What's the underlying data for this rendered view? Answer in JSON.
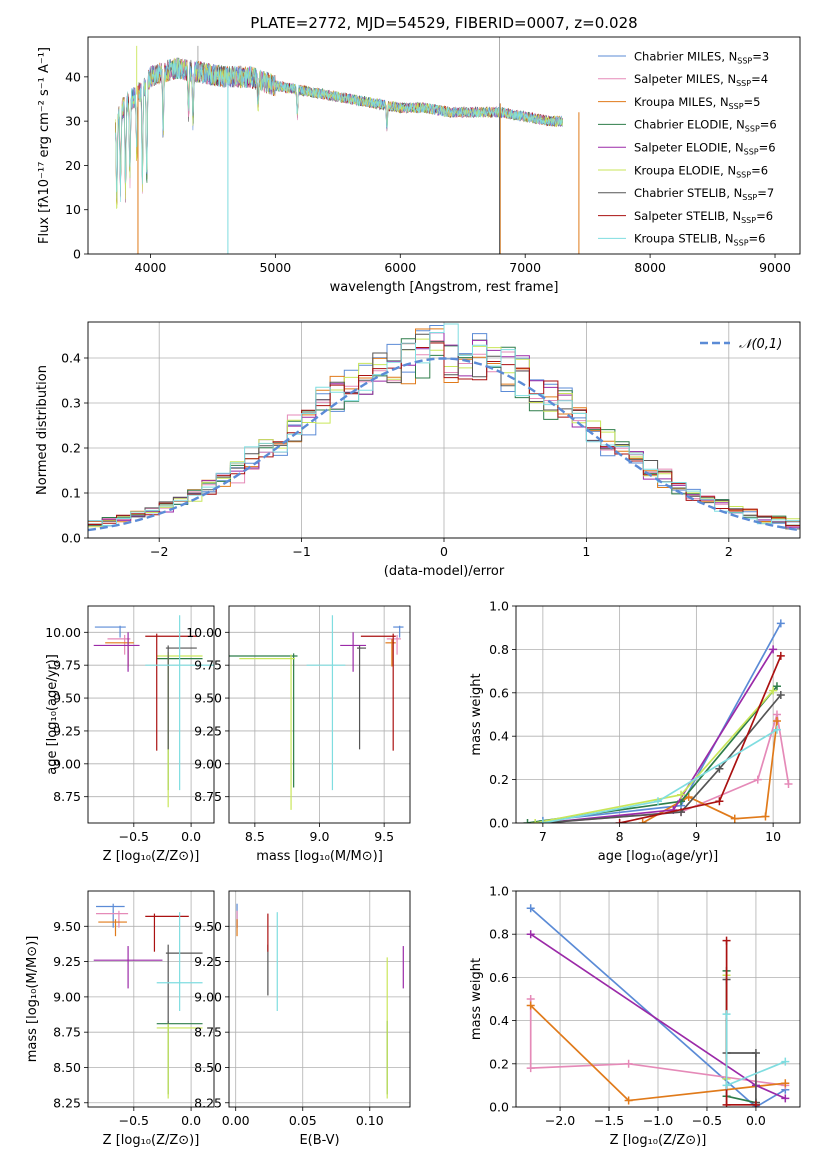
{
  "colors": {
    "Chabrier MILES": "#5b8bd6",
    "Salpeter MILES": "#e58ab8",
    "Kroupa MILES": "#e07a1a",
    "Chabrier ELODIE": "#2e7d4a",
    "Salpeter ELODIE": "#9b2aa8",
    "Kroupa ELODIE": "#c9e65a",
    "Chabrier STELIB": "#555555",
    "Salpeter STELIB": "#aa1111",
    "Kroupa STELIB": "#7fdde0"
  },
  "chart_data": [
    {
      "type": "line",
      "title": "PLATE=2772, MJD=54529, FIBERID=0007, z=0.028",
      "xlabel": "wavelength [Angstrom, rest frame]",
      "ylabel": "Flux [fλ10⁻¹⁷ erg cm⁻² s⁻¹ A⁻¹]",
      "xlim": [
        3500,
        9200
      ],
      "ylim": [
        0,
        49
      ],
      "xticks": [
        4000,
        5000,
        6000,
        7000,
        8000,
        9000
      ],
      "yticks": [
        0,
        10,
        20,
        30,
        40
      ],
      "legend_position": "upper right",
      "series": [
        {
          "name": "Chabrier MILES, N",
          "sub": "SSP",
          "tail": "=3"
        },
        {
          "name": "Salpeter MILES, N",
          "sub": "SSP",
          "tail": "=4"
        },
        {
          "name": "Kroupa MILES, N",
          "sub": "SSP",
          "tail": "=5"
        },
        {
          "name": "Chabrier ELODIE, N",
          "sub": "SSP",
          "tail": "=6"
        },
        {
          "name": "Salpeter ELODIE, N",
          "sub": "SSP",
          "tail": "=6"
        },
        {
          "name": "Kroupa ELODIE, N",
          "sub": "SSP",
          "tail": "=6"
        },
        {
          "name": "Chabrier STELIB, N",
          "sub": "SSP",
          "tail": "=7"
        },
        {
          "name": "Salpeter STELIB, N",
          "sub": "SSP",
          "tail": "=6"
        },
        {
          "name": "Kroupa STELIB, N",
          "sub": "SSP",
          "tail": "=6"
        }
      ],
      "continuum": {
        "x": [
          3720,
          3800,
          3900,
          4000,
          4100,
          4200,
          4400,
          4600,
          4800,
          5000,
          5200,
          5400,
          5600,
          5800,
          6000,
          6200,
          6400,
          6600,
          6800,
          7000,
          7200,
          7300
        ],
        "y": [
          30,
          34,
          36,
          40,
          41,
          42,
          41,
          40,
          40,
          38,
          37,
          36,
          35,
          34,
          33,
          33,
          32,
          32,
          32,
          31,
          30,
          30
        ]
      },
      "absorption_lines": [
        {
          "x": 3730,
          "depth": 20
        },
        {
          "x": 3760,
          "depth": 18
        },
        {
          "x": 3800,
          "depth": 20
        },
        {
          "x": 3835,
          "depth": 18
        },
        {
          "x": 3890,
          "depth": 14
        },
        {
          "x": 3935,
          "depth": 22
        },
        {
          "x": 3970,
          "depth": 23
        },
        {
          "x": 4102,
          "depth": 14
        },
        {
          "x": 4305,
          "depth": 10
        },
        {
          "x": 4341,
          "depth": 12
        },
        {
          "x": 4861,
          "depth": 6
        },
        {
          "x": 5175,
          "depth": 6
        },
        {
          "x": 5893,
          "depth": 5
        }
      ],
      "segments": [
        {
          "series": "Chabrier STELIB",
          "x": [
            3900,
            7000
          ],
          "bottom": 0,
          "note": "vertical drops"
        }
      ]
    },
    {
      "type": "line",
      "xlabel": "(data-model)/error",
      "ylabel": "Normed distribution",
      "xlim": [
        -2.5,
        2.5
      ],
      "ylim": [
        0,
        0.48
      ],
      "xticks": [
        -2,
        -1,
        0,
        1,
        2
      ],
      "yticks": [
        0.0,
        0.1,
        0.2,
        0.3,
        0.4
      ],
      "legend": "𝒩(0,1)",
      "gaussian": {
        "mean": 0,
        "sigma": 1
      }
    },
    {
      "type": "scatter",
      "xlabel": "Z [log₁₀(Z/Z⊙)]",
      "ylabel": "age [log₁₀(age/yr)]",
      "xlim": [
        -0.9,
        0.2
      ],
      "ylim": [
        8.55,
        10.2
      ],
      "xticks": [
        -0.5,
        0.0
      ],
      "yticks": [
        8.75,
        9.0,
        9.25,
        9.5,
        9.75,
        10.0
      ],
      "points": [
        {
          "series": "Chabrier MILES",
          "x": -0.62,
          "y": 10.04,
          "xerr": [
            0.22,
            0.05
          ],
          "yerr": [
            0.08,
            0.01
          ]
        },
        {
          "series": "Salpeter MILES",
          "x": -0.58,
          "y": 9.95,
          "xerr": [
            0.15,
            0.05
          ],
          "yerr": [
            0.12,
            0.03
          ]
        },
        {
          "series": "Kroupa MILES",
          "x": -0.55,
          "y": 9.92,
          "xerr": [
            0.2,
            0.05
          ],
          "yerr": [
            0.18,
            0.03
          ]
        },
        {
          "series": "Chabrier ELODIE",
          "x": -0.2,
          "y": 9.8,
          "xerr": [
            0.1,
            0.3
          ],
          "yerr": [
            1.0,
            0.02
          ]
        },
        {
          "series": "Salpeter ELODIE",
          "x": -0.55,
          "y": 9.9,
          "xerr": [
            0.3,
            0.1
          ],
          "yerr": [
            0.2,
            0.1
          ]
        },
        {
          "series": "Kroupa ELODIE",
          "x": -0.2,
          "y": 9.82,
          "xerr": [
            0.1,
            0.3
          ],
          "yerr": [
            1.15,
            0.03
          ]
        },
        {
          "series": "Chabrier STELIB",
          "x": -0.2,
          "y": 9.88,
          "xerr": [
            0.02,
            0.25
          ],
          "yerr": [
            0.77,
            0.02
          ]
        },
        {
          "series": "Salpeter STELIB",
          "x": -0.3,
          "y": 9.97,
          "xerr": [
            0.1,
            0.35
          ],
          "yerr": [
            0.87,
            0.02
          ]
        },
        {
          "series": "Kroupa STELIB",
          "x": -0.1,
          "y": 9.75,
          "xerr": [
            0.3,
            0.3
          ],
          "yerr": [
            0.95,
            0.38
          ]
        }
      ]
    },
    {
      "type": "scatter",
      "xlabel": "mass [log₁₀(M/M⊙)]",
      "ylabel": "",
      "xlim": [
        8.3,
        9.7
      ],
      "ylim": [
        8.55,
        10.2
      ],
      "xticks": [
        8.5,
        9.0,
        9.5
      ],
      "yticks": [
        8.75,
        9.0,
        9.25,
        9.5,
        9.75,
        10.0
      ],
      "points": [
        {
          "series": "Chabrier MILES",
          "x": 9.62,
          "y": 10.04,
          "xerr": [
            0.05,
            0.03
          ],
          "yerr": [
            0.08,
            0.01
          ]
        },
        {
          "series": "Salpeter MILES",
          "x": 9.6,
          "y": 9.95,
          "xerr": [
            0.08,
            0.03
          ],
          "yerr": [
            0.12,
            0.03
          ]
        },
        {
          "series": "Kroupa MILES",
          "x": 9.56,
          "y": 9.92,
          "xerr": [
            0.05,
            0.03
          ],
          "yerr": [
            0.18,
            0.03
          ]
        },
        {
          "series": "Chabrier ELODIE",
          "x": 8.8,
          "y": 9.82,
          "xerr": [
            0.5,
            0.03
          ],
          "yerr": [
            1.0,
            0.02
          ]
        },
        {
          "series": "Salpeter ELODIE",
          "x": 9.26,
          "y": 9.9,
          "xerr": [
            0.1,
            0.1
          ],
          "yerr": [
            0.2,
            0.1
          ]
        },
        {
          "series": "Kroupa ELODIE",
          "x": 8.78,
          "y": 9.8,
          "xerr": [
            0.4,
            0.03
          ],
          "yerr": [
            1.15,
            0.03
          ]
        },
        {
          "series": "Chabrier STELIB",
          "x": 9.31,
          "y": 9.88,
          "xerr": [
            0.02,
            0.05
          ],
          "yerr": [
            0.77,
            0.02
          ]
        },
        {
          "series": "Salpeter STELIB",
          "x": 9.57,
          "y": 9.97,
          "xerr": [
            0.25,
            0.02
          ],
          "yerr": [
            0.87,
            0.02
          ]
        },
        {
          "series": "Kroupa STELIB",
          "x": 9.1,
          "y": 9.75,
          "xerr": [
            0.2,
            0.1
          ],
          "yerr": [
            0.95,
            0.38
          ]
        }
      ]
    },
    {
      "type": "line",
      "xlabel": "age  [log₁₀(age/yr)]",
      "ylabel": "mass weight",
      "xlim": [
        6.65,
        10.35
      ],
      "ylim": [
        0,
        1.0
      ],
      "xticks": [
        7,
        8,
        9,
        10
      ],
      "yticks": [
        0.0,
        0.2,
        0.4,
        0.6,
        0.8,
        1.0
      ],
      "series": [
        {
          "name": "Chabrier MILES",
          "x": [
            7.0,
            8.8,
            10.1
          ],
          "y": [
            0.01,
            0.08,
            0.92
          ]
        },
        {
          "name": "Salpeter MILES",
          "x": [
            7.0,
            8.8,
            9.8,
            10.05,
            10.2
          ],
          "y": [
            0.0,
            0.05,
            0.2,
            0.5,
            0.18
          ]
        },
        {
          "name": "Kroupa MILES",
          "x": [
            8.3,
            8.9,
            9.5,
            9.9,
            10.05
          ],
          "y": [
            0.0,
            0.12,
            0.02,
            0.03,
            0.47
          ]
        },
        {
          "name": "Chabrier ELODIE",
          "x": [
            6.8,
            8.8,
            10.05
          ],
          "y": [
            0.0,
            0.1,
            0.63
          ]
        },
        {
          "name": "Salpeter ELODIE",
          "x": [
            7.0,
            8.7,
            10.0
          ],
          "y": [
            0.0,
            0.06,
            0.8
          ]
        },
        {
          "name": "Kroupa ELODIE",
          "x": [
            6.9,
            8.8,
            10.0
          ],
          "y": [
            0.0,
            0.13,
            0.61
          ]
        },
        {
          "name": "Chabrier STELIB",
          "x": [
            7.0,
            8.8,
            9.3,
            10.1
          ],
          "y": [
            0.0,
            0.05,
            0.25,
            0.59
          ]
        },
        {
          "name": "Salpeter STELIB",
          "x": [
            8.0,
            9.3,
            10.1
          ],
          "y": [
            0.0,
            0.1,
            0.77
          ]
        },
        {
          "name": "Kroupa STELIB",
          "x": [
            7.0,
            8.5,
            10.05
          ],
          "y": [
            0.0,
            0.1,
            0.43
          ]
        }
      ]
    },
    {
      "type": "scatter",
      "xlabel": "Z [log₁₀(Z/Z⊙)]",
      "ylabel": "mass [log₁₀(M/M⊙)]",
      "xlim": [
        -0.9,
        0.2
      ],
      "ylim": [
        8.22,
        9.75
      ],
      "xticks": [
        -0.5,
        0.0
      ],
      "yticks": [
        8.25,
        8.5,
        8.75,
        9.0,
        9.25,
        9.5
      ],
      "points": [
        {
          "series": "Chabrier MILES",
          "x": -0.68,
          "y": 9.64,
          "xerr": [
            0.15,
            0.1
          ],
          "yerr": [
            0.15,
            0.02
          ]
        },
        {
          "series": "Salpeter MILES",
          "x": -0.63,
          "y": 9.59,
          "xerr": [
            0.2,
            0.08
          ],
          "yerr": [
            0.1,
            0.02
          ]
        },
        {
          "series": "Kroupa MILES",
          "x": -0.66,
          "y": 9.53,
          "xerr": [
            0.15,
            0.1
          ],
          "yerr": [
            0.1,
            0.02
          ]
        },
        {
          "series": "Chabrier ELODIE",
          "x": -0.2,
          "y": 8.81,
          "xerr": [
            0.1,
            0.3
          ],
          "yerr": [
            0.5,
            0.02
          ]
        },
        {
          "series": "Salpeter ELODIE",
          "x": -0.55,
          "y": 9.26,
          "xerr": [
            0.3,
            0.3
          ],
          "yerr": [
            0.2,
            0.1
          ]
        },
        {
          "series": "Kroupa ELODIE",
          "x": -0.2,
          "y": 8.78,
          "xerr": [
            0.1,
            0.3
          ],
          "yerr": [
            0.5,
            0.03
          ]
        },
        {
          "series": "Chabrier STELIB",
          "x": -0.2,
          "y": 9.31,
          "xerr": [
            0.02,
            0.3
          ],
          "yerr": [
            0.5,
            0.06
          ]
        },
        {
          "series": "Salpeter STELIB",
          "x": -0.32,
          "y": 9.57,
          "xerr": [
            0.08,
            0.3
          ],
          "yerr": [
            0.25,
            0.02
          ]
        },
        {
          "series": "Kroupa STELIB",
          "x": -0.1,
          "y": 9.1,
          "xerr": [
            0.2,
            0.2
          ],
          "yerr": [
            0.2,
            0.5
          ]
        }
      ]
    },
    {
      "type": "scatter",
      "xlabel": "E(B-V)",
      "ylabel": "",
      "xlim": [
        -0.005,
        0.13
      ],
      "ylim": [
        8.22,
        9.75
      ],
      "xticks": [
        0.0,
        0.05,
        0.1
      ],
      "yticks": [
        8.25,
        8.5,
        8.75,
        9.0,
        9.25,
        9.5
      ],
      "points": [
        {
          "series": "Chabrier MILES",
          "x": 0.001,
          "y": 9.64,
          "yerr": [
            0.15,
            0.02
          ]
        },
        {
          "series": "Salpeter MILES",
          "x": 0.001,
          "y": 9.59,
          "yerr": [
            0.1,
            0.02
          ]
        },
        {
          "series": "Kroupa MILES",
          "x": 0.001,
          "y": 9.53,
          "yerr": [
            0.1,
            0.02
          ]
        },
        {
          "series": "Chabrier ELODIE",
          "x": 0.113,
          "y": 8.81,
          "yerr": [
            0.5,
            0.02
          ]
        },
        {
          "series": "Salpeter ELODIE",
          "x": 0.125,
          "y": 9.26,
          "yerr": [
            0.2,
            0.1
          ]
        },
        {
          "series": "Kroupa ELODIE",
          "x": 0.113,
          "y": 8.78,
          "yerr": [
            0.5,
            0.5
          ]
        },
        {
          "series": "Chabrier STELIB",
          "x": 0.024,
          "y": 9.31,
          "yerr": [
            0.3,
            0.06
          ]
        },
        {
          "series": "Salpeter STELIB",
          "x": 0.024,
          "y": 9.57,
          "yerr": [
            0.25,
            0.02
          ]
        },
        {
          "series": "Kroupa STELIB",
          "x": 0.031,
          "y": 9.1,
          "yerr": [
            0.2,
            0.5
          ]
        }
      ]
    },
    {
      "type": "line",
      "xlabel": "Z [log₁₀(Z/Z⊙)]",
      "ylabel": "mass weight",
      "xlim": [
        -2.45,
        0.45
      ],
      "ylim": [
        0,
        1.0
      ],
      "xticks": [
        -2.0,
        -1.5,
        -1.0,
        -0.5,
        0.0
      ],
      "yticks": [
        0.0,
        0.2,
        0.4,
        0.6,
        0.8,
        1.0
      ],
      "series": [
        {
          "name": "Chabrier MILES",
          "x": [
            -2.3,
            0.0,
            0.3
          ],
          "y": [
            0.92,
            0.0,
            0.08
          ]
        },
        {
          "name": "Salpeter MILES",
          "x": [
            -2.3,
            -2.3,
            -1.3,
            0.3
          ],
          "y": [
            0.5,
            0.18,
            0.2,
            0.1
          ]
        },
        {
          "name": "Kroupa MILES",
          "x": [
            -2.3,
            -1.3,
            0.3
          ],
          "y": [
            0.47,
            0.03,
            0.11
          ]
        },
        {
          "name": "Chabrier ELODIE",
          "x": [
            -0.3,
            -0.3,
            0.0
          ],
          "y": [
            0.63,
            0.05,
            0.02
          ]
        },
        {
          "name": "Salpeter ELODIE",
          "x": [
            -2.3,
            0.0,
            0.3
          ],
          "y": [
            0.8,
            0.1,
            0.04
          ]
        },
        {
          "name": "Kroupa ELODIE",
          "x": [
            -0.3,
            -0.3
          ],
          "y": [
            0.61,
            0.13
          ]
        },
        {
          "name": "Chabrier STELIB",
          "x": [
            -0.3,
            -0.3,
            0.0,
            0.0
          ],
          "y": [
            0.59,
            0.25,
            0.25,
            0.02
          ]
        },
        {
          "name": "Salpeter STELIB",
          "x": [
            -0.3,
            -0.3,
            0.0
          ],
          "y": [
            0.77,
            0.01,
            0.01
          ]
        },
        {
          "name": "Kroupa STELIB",
          "x": [
            -0.3,
            -0.3,
            0.3
          ],
          "y": [
            0.43,
            0.1,
            0.21
          ]
        }
      ]
    }
  ]
}
